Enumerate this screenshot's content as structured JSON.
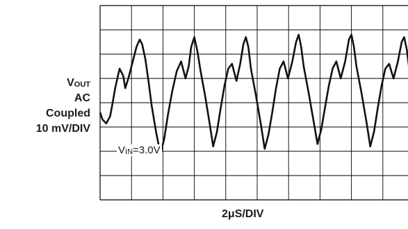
{
  "chart_data": {
    "type": "line",
    "ylabel_lines": [
      {
        "main": "V",
        "sub": "OUT"
      },
      {
        "main": "AC"
      },
      {
        "main": "Coupled"
      },
      {
        "main": "10 mV/DIV"
      }
    ],
    "xlabel": "2μS/DIV",
    "annotation": {
      "main": "V",
      "sub": "IN",
      "rest": "=3.0V"
    },
    "x_divisions": 10,
    "y_divisions": 8,
    "xlim": [
      0,
      10
    ],
    "ylim": [
      -4,
      4
    ],
    "grid": true,
    "series": [
      {
        "color": "#111111",
        "x": [
          0.0,
          0.08,
          0.2,
          0.32,
          0.4,
          0.48,
          0.62,
          0.74,
          0.8,
          0.9,
          1.04,
          1.16,
          1.26,
          1.34,
          1.44,
          1.54,
          1.64,
          1.78,
          1.92,
          2.04,
          2.16,
          2.3,
          2.44,
          2.58,
          2.72,
          2.82,
          2.9,
          3.0,
          3.1,
          3.2,
          3.34,
          3.48,
          3.6,
          3.72,
          3.84,
          3.96,
          4.08,
          4.2,
          4.34,
          4.46,
          4.56,
          4.64,
          4.72,
          4.8,
          4.96,
          5.12,
          5.24,
          5.36,
          5.48,
          5.6,
          5.72,
          5.84,
          5.98,
          6.12,
          6.24,
          6.32,
          6.4,
          6.48,
          6.64,
          6.8,
          6.92,
          7.04,
          7.16,
          7.28,
          7.4,
          7.52,
          7.66,
          7.8,
          7.92,
          8.0,
          8.08,
          8.16,
          8.32,
          8.48,
          8.6,
          8.72,
          8.84,
          8.96,
          9.08,
          9.2,
          9.34,
          9.48,
          9.6,
          9.68,
          9.76,
          9.84,
          10.0
        ],
        "y": [
          -0.4,
          -0.7,
          -0.85,
          -0.55,
          0.0,
          0.6,
          1.4,
          1.1,
          0.6,
          1.0,
          1.7,
          2.3,
          2.6,
          2.4,
          1.8,
          0.9,
          -0.1,
          -1.2,
          -2.1,
          -1.5,
          -0.5,
          0.5,
          1.3,
          1.7,
          1.0,
          1.5,
          2.3,
          2.7,
          2.1,
          1.3,
          0.3,
          -0.8,
          -1.8,
          -1.2,
          -0.2,
          0.7,
          1.4,
          1.6,
          0.9,
          1.6,
          2.4,
          2.7,
          2.3,
          1.4,
          0.3,
          -0.9,
          -1.9,
          -1.3,
          -0.4,
          0.6,
          1.4,
          1.7,
          1.0,
          1.7,
          2.5,
          2.8,
          2.3,
          1.5,
          0.4,
          -0.8,
          -1.7,
          -1.1,
          -0.2,
          0.7,
          1.4,
          1.7,
          1.0,
          1.7,
          2.6,
          2.8,
          2.3,
          1.5,
          0.4,
          -0.8,
          -1.8,
          -1.2,
          -0.2,
          0.7,
          1.4,
          1.6,
          1.0,
          1.7,
          2.5,
          2.7,
          2.2,
          1.4,
          0.2
        ]
      }
    ]
  }
}
